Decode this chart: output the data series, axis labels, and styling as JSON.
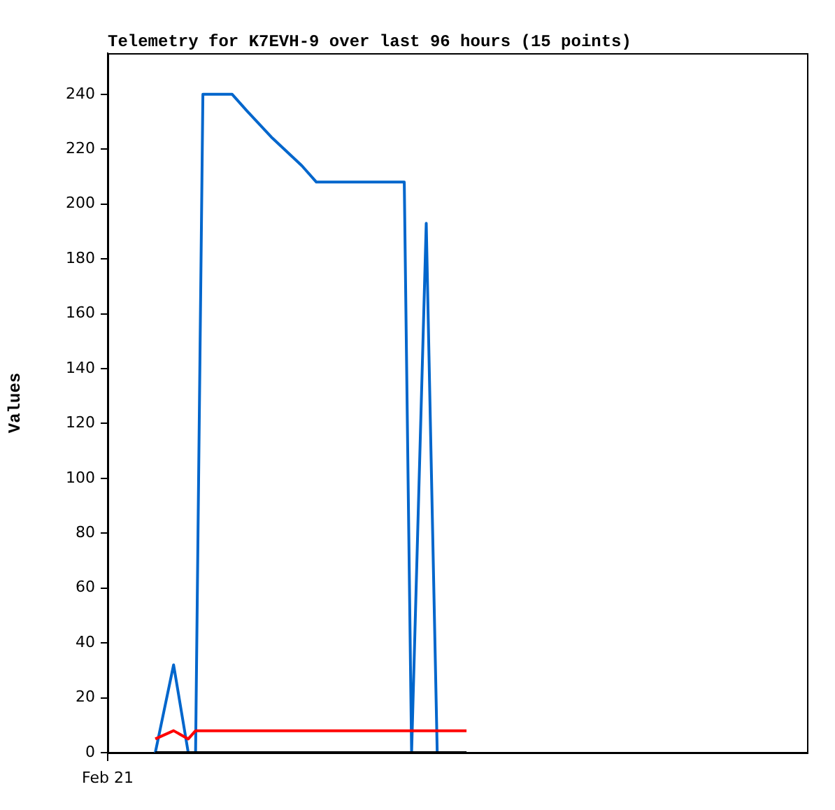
{
  "chart_data": {
    "type": "line",
    "title": "Telemetry for K7EVH-9 over last 96 hours (15 points)",
    "ylabel": "Values",
    "categories": [
      "Feb 21",
      null,
      null,
      null,
      null,
      null,
      null,
      null,
      null,
      null,
      null,
      null,
      null,
      null,
      null,
      null,
      null,
      null,
      null,
      null,
      null,
      null,
      null,
      null,
      null,
      null,
      null,
      null,
      null,
      null,
      null,
      null,
      null,
      null,
      null,
      null,
      null,
      null,
      null,
      null,
      null,
      null,
      null,
      null,
      null,
      null,
      null,
      null,
      null,
      null,
      null,
      null,
      null,
      null,
      null,
      null,
      null,
      null,
      null,
      null,
      null,
      null,
      null,
      null,
      null,
      null,
      null,
      null,
      null,
      null,
      null,
      null,
      null,
      null,
      null,
      null,
      null,
      null,
      null,
      null,
      null,
      null,
      null,
      null,
      null,
      null,
      null,
      null,
      null,
      null,
      null,
      null,
      null,
      null,
      null,
      null,
      null,
      null,
      null,
      null,
      null,
      null,
      null,
      null,
      null,
      null,
      null,
      null,
      null,
      null,
      null,
      null,
      null,
      null,
      null,
      null,
      null,
      null,
      null,
      null,
      null,
      null,
      null,
      null,
      null,
      null,
      null,
      null,
      null,
      null,
      null,
      null,
      null,
      null,
      null,
      null,
      null,
      null,
      null,
      null,
      null,
      null,
      null,
      null,
      null,
      null,
      null,
      null,
      null,
      null,
      null,
      null,
      null,
      null,
      null,
      null,
      null,
      null,
      null,
      null,
      null,
      null,
      null,
      null,
      null,
      null,
      null,
      null,
      null,
      null,
      null,
      null,
      null,
      null,
      null,
      null,
      null,
      null,
      null,
      null,
      null,
      null,
      null,
      null,
      null,
      null,
      null,
      null,
      null,
      null,
      null,
      null
    ],
    "series": [
      {
        "color": "#000000",
        "values": [
          null,
          null,
          null,
          null,
          null,
          null,
          null,
          null,
          null,
          null,
          null,
          null,
          null,
          0,
          null,
          null,
          null,
          null,
          0,
          null,
          null,
          null,
          0,
          null,
          0,
          null,
          0,
          null,
          null,
          null,
          null,
          null,
          null,
          null,
          0,
          null,
          null,
          null,
          0,
          null,
          null,
          null,
          null,
          null,
          null,
          0,
          null,
          null,
          null,
          null,
          null,
          null,
          null,
          0,
          null,
          null,
          null,
          0,
          null,
          null,
          null,
          null,
          null,
          null,
          null,
          null,
          null,
          null,
          null,
          null,
          null,
          null,
          null,
          null,
          null,
          null,
          null,
          null,
          null,
          null,
          null,
          0,
          null,
          0,
          null,
          null,
          null,
          0,
          null,
          null,
          0,
          null,
          null,
          null,
          null,
          null,
          null,
          null,
          0,
          null,
          null,
          null,
          null,
          null,
          null,
          null,
          null,
          null,
          null,
          null,
          null,
          null,
          null,
          null,
          null,
          null,
          null,
          null,
          null,
          null,
          null,
          null,
          null,
          null,
          null,
          null,
          null,
          null,
          null,
          null,
          null,
          null,
          null,
          null,
          null,
          null,
          null,
          null,
          null,
          null,
          null,
          null,
          null,
          null,
          null,
          null,
          null,
          null,
          null,
          null,
          null,
          null,
          null,
          null,
          null,
          null,
          null,
          null,
          null,
          null,
          null,
          null,
          null,
          null,
          null,
          null,
          null,
          null,
          null,
          null,
          null,
          null,
          null,
          null,
          null,
          null,
          null,
          null,
          null,
          null,
          null,
          null,
          null,
          null,
          null,
          null,
          null,
          null,
          null,
          null,
          null,
          null
        ]
      },
      {
        "color": "#ff0000",
        "values": [
          null,
          null,
          null,
          null,
          null,
          null,
          null,
          null,
          null,
          null,
          null,
          null,
          null,
          5,
          null,
          null,
          null,
          null,
          8,
          null,
          null,
          null,
          5,
          null,
          8,
          null,
          8,
          null,
          null,
          null,
          null,
          null,
          null,
          null,
          8,
          null,
          null,
          null,
          8,
          null,
          null,
          null,
          null,
          null,
          null,
          8,
          null,
          null,
          null,
          null,
          null,
          null,
          null,
          8,
          null,
          null,
          null,
          8,
          null,
          null,
          null,
          null,
          null,
          null,
          null,
          null,
          null,
          null,
          null,
          null,
          null,
          null,
          null,
          null,
          null,
          null,
          null,
          null,
          null,
          null,
          null,
          8,
          null,
          8,
          null,
          null,
          null,
          8,
          null,
          null,
          8,
          null,
          null,
          null,
          null,
          null,
          null,
          null,
          8,
          null,
          null,
          null,
          null,
          null,
          null,
          null,
          null,
          null,
          null,
          null,
          null,
          null,
          null,
          null,
          null,
          null,
          null,
          null,
          null,
          null,
          null,
          null,
          null,
          null,
          null,
          null,
          null,
          null,
          null,
          null,
          null,
          null,
          null,
          null,
          null,
          null,
          null,
          null,
          null,
          null,
          null,
          null,
          null,
          null,
          null,
          null,
          null,
          null,
          null,
          null,
          null,
          null,
          null,
          null,
          null,
          null,
          null,
          null,
          null,
          null,
          null,
          null,
          null,
          null,
          null,
          null,
          null,
          null,
          null,
          null,
          null,
          null,
          null,
          null,
          null,
          null,
          null,
          null,
          null,
          null,
          null,
          null,
          null,
          null,
          null,
          null,
          null,
          null,
          null,
          null,
          null,
          null
        ]
      },
      {
        "color": "#0066cc",
        "values": [
          null,
          null,
          null,
          null,
          null,
          null,
          null,
          null,
          null,
          null,
          null,
          null,
          null,
          0,
          null,
          null,
          null,
          null,
          32,
          null,
          null,
          null,
          0,
          null,
          0,
          null,
          240,
          null,
          null,
          null,
          null,
          null,
          null,
          null,
          240,
          null,
          null,
          null,
          234,
          null,
          null,
          null,
          null,
          null,
          null,
          224,
          null,
          null,
          null,
          null,
          null,
          null,
          null,
          214,
          null,
          null,
          null,
          208,
          null,
          null,
          null,
          null,
          null,
          null,
          null,
          null,
          null,
          null,
          null,
          null,
          null,
          null,
          null,
          null,
          null,
          null,
          null,
          null,
          null,
          null,
          null,
          208,
          null,
          0,
          null,
          null,
          null,
          193,
          null,
          null,
          0,
          null,
          null,
          null,
          null,
          null,
          null,
          null,
          0,
          null,
          null,
          null,
          null,
          null,
          null,
          null,
          null,
          null,
          null,
          null,
          null,
          null,
          null,
          null,
          null,
          null,
          null,
          null,
          null,
          null,
          null,
          null,
          null,
          null,
          null,
          null,
          null,
          null,
          null,
          null,
          null,
          null,
          null,
          null,
          null,
          null,
          null,
          null,
          null,
          null,
          null,
          null,
          null,
          null,
          null,
          null,
          null,
          null,
          null,
          null,
          null,
          null,
          null,
          null,
          null,
          null,
          null,
          null,
          null,
          null,
          null,
          null,
          null,
          null,
          null,
          null,
          null,
          null,
          null,
          null,
          null,
          null,
          null,
          null,
          null,
          null,
          null,
          null,
          null,
          null,
          null,
          null,
          null,
          null,
          null,
          null,
          null,
          null,
          null,
          null,
          null,
          null
        ]
      }
    ],
    "ylim": [
      0,
      255
    ],
    "yticks": [
      0,
      20,
      40,
      60,
      80,
      100,
      120,
      140,
      160,
      180,
      200,
      220,
      240
    ],
    "grid": false,
    "legend": false,
    "marker": "none",
    "line_style": "solid"
  }
}
